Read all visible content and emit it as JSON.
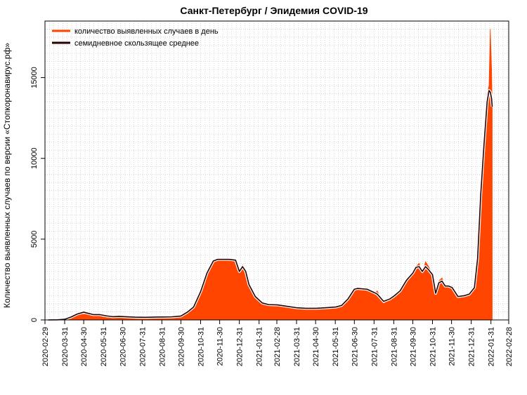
{
  "chart_data": {
    "type": "area",
    "title": "Санкт-Петербург / Эпидемия COVID-19",
    "xlabel": "",
    "ylabel": "Количество выявленных случаев по версии «Стопкоронавирус.рф»",
    "ylim": [
      0,
      18500
    ],
    "yticks": [
      0,
      5000,
      10000,
      15000
    ],
    "ytick_labels": [
      "0",
      "5000",
      "10000",
      "15000"
    ],
    "xlim": [
      "2020-02-29",
      "2022-02-28"
    ],
    "xticks": [
      "2020-02-29",
      "2020-03-31",
      "2020-04-30",
      "2020-05-31",
      "2020-06-30",
      "2020-07-31",
      "2020-08-31",
      "2020-09-30",
      "2020-10-31",
      "2020-11-30",
      "2020-12-31",
      "2021-01-31",
      "2021-02-28",
      "2021-03-31",
      "2021-04-30",
      "2021-05-31",
      "2021-06-30",
      "2021-07-31",
      "2021-08-31",
      "2021-09-30",
      "2021-10-31",
      "2021-11-30",
      "2021-12-31",
      "2022-01-31",
      "2022-02-28"
    ],
    "grid": true,
    "legend_position": "top-left",
    "series": [
      {
        "name": "количество выявленных случаев в день",
        "color": "#ff4500",
        "x": [
          "2020-03-05",
          "2020-03-20",
          "2020-03-31",
          "2020-04-10",
          "2020-04-20",
          "2020-04-30",
          "2020-05-08",
          "2020-05-15",
          "2020-05-25",
          "2020-06-05",
          "2020-06-15",
          "2020-06-25",
          "2020-07-05",
          "2020-07-20",
          "2020-08-05",
          "2020-08-20",
          "2020-09-01",
          "2020-09-15",
          "2020-09-30",
          "2020-10-10",
          "2020-10-20",
          "2020-10-31",
          "2020-11-10",
          "2020-11-20",
          "2020-11-27",
          "2020-12-05",
          "2020-12-15",
          "2020-12-25",
          "2020-12-31",
          "2021-01-05",
          "2021-01-10",
          "2021-01-15",
          "2021-01-25",
          "2021-02-05",
          "2021-02-15",
          "2021-03-01",
          "2021-03-15",
          "2021-04-01",
          "2021-04-15",
          "2021-05-01",
          "2021-05-15",
          "2021-06-01",
          "2021-06-10",
          "2021-06-20",
          "2021-06-30",
          "2021-07-05",
          "2021-07-20",
          "2021-07-31",
          "2021-08-05",
          "2021-08-15",
          "2021-08-25",
          "2021-09-01",
          "2021-09-10",
          "2021-09-20",
          "2021-09-30",
          "2021-10-05",
          "2021-10-10",
          "2021-10-15",
          "2021-10-20",
          "2021-10-25",
          "2021-10-31",
          "2021-11-05",
          "2021-11-10",
          "2021-11-15",
          "2021-11-20",
          "2021-11-25",
          "2021-12-01",
          "2021-12-10",
          "2021-12-20",
          "2021-12-28",
          "2022-01-05",
          "2022-01-10",
          "2022-01-15",
          "2022-01-20",
          "2022-01-25",
          "2022-01-28",
          "2022-01-30",
          "2022-02-01",
          "2022-02-02"
        ],
        "y": [
          0,
          10,
          40,
          200,
          400,
          520,
          400,
          320,
          350,
          250,
          200,
          230,
          200,
          170,
          160,
          180,
          180,
          190,
          250,
          500,
          800,
          1800,
          3000,
          3700,
          3800,
          3750,
          3800,
          3700,
          3000,
          3400,
          3000,
          2200,
          1500,
          1050,
          950,
          930,
          850,
          750,
          720,
          720,
          750,
          800,
          900,
          1300,
          1900,
          2000,
          1900,
          1600,
          1800,
          1000,
          1300,
          1500,
          1800,
          2500,
          3000,
          3300,
          3500,
          2800,
          3600,
          3300,
          2800,
          1500,
          2400,
          2600,
          2000,
          2100,
          2100,
          1400,
          1500,
          1600,
          2000,
          4000,
          8000,
          11000,
          14000,
          14500,
          18000,
          15500,
          13000
        ]
      },
      {
        "name": "семидневное скользящее среднее",
        "color": "#2b0000",
        "x": [
          "2020-03-05",
          "2020-03-20",
          "2020-03-31",
          "2020-04-10",
          "2020-04-20",
          "2020-04-30",
          "2020-05-08",
          "2020-05-15",
          "2020-05-25",
          "2020-06-05",
          "2020-06-15",
          "2020-06-25",
          "2020-07-05",
          "2020-07-20",
          "2020-08-05",
          "2020-08-20",
          "2020-09-01",
          "2020-09-15",
          "2020-09-30",
          "2020-10-10",
          "2020-10-20",
          "2020-10-31",
          "2020-11-10",
          "2020-11-20",
          "2020-11-27",
          "2020-12-05",
          "2020-12-15",
          "2020-12-25",
          "2020-12-31",
          "2021-01-05",
          "2021-01-10",
          "2021-01-15",
          "2021-01-25",
          "2021-02-05",
          "2021-02-15",
          "2021-03-01",
          "2021-03-15",
          "2021-04-01",
          "2021-04-15",
          "2021-05-01",
          "2021-05-15",
          "2021-06-01",
          "2021-06-10",
          "2021-06-20",
          "2021-06-30",
          "2021-07-05",
          "2021-07-20",
          "2021-07-31",
          "2021-08-05",
          "2021-08-15",
          "2021-08-25",
          "2021-09-01",
          "2021-09-10",
          "2021-09-20",
          "2021-09-30",
          "2021-10-05",
          "2021-10-10",
          "2021-10-15",
          "2021-10-20",
          "2021-10-25",
          "2021-10-31",
          "2021-11-05",
          "2021-11-10",
          "2021-11-15",
          "2021-11-20",
          "2021-11-25",
          "2021-12-01",
          "2021-12-10",
          "2021-12-20",
          "2021-12-28",
          "2022-01-05",
          "2022-01-10",
          "2022-01-15",
          "2022-01-20",
          "2022-01-25",
          "2022-01-28",
          "2022-01-30",
          "2022-02-01",
          "2022-02-02"
        ],
        "y": [
          0,
          10,
          40,
          180,
          370,
          480,
          400,
          330,
          330,
          250,
          200,
          220,
          200,
          170,
          160,
          175,
          180,
          190,
          240,
          480,
          800,
          1750,
          2900,
          3650,
          3750,
          3750,
          3750,
          3700,
          3000,
          3300,
          3000,
          2200,
          1450,
          1050,
          950,
          930,
          850,
          750,
          720,
          720,
          750,
          800,
          900,
          1300,
          1900,
          1950,
          1900,
          1700,
          1600,
          1150,
          1300,
          1500,
          1800,
          2450,
          2900,
          3250,
          3300,
          3000,
          3300,
          3100,
          2800,
          1650,
          2300,
          2400,
          2100,
          2100,
          2000,
          1450,
          1500,
          1600,
          2000,
          3800,
          7800,
          10800,
          13500,
          14200,
          14100,
          13700,
          13200
        ]
      }
    ]
  }
}
